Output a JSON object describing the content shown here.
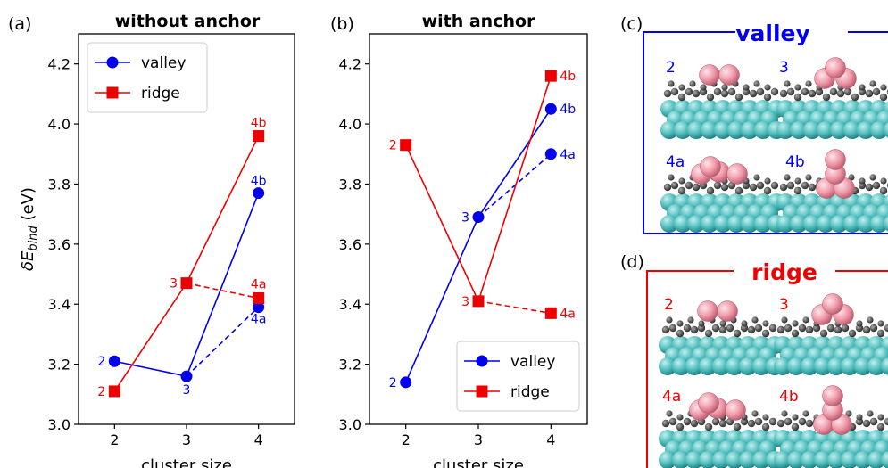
{
  "colors": {
    "valley": "#0000ee",
    "ridge": "#ee0000",
    "frame": "#000000"
  },
  "chart_data": [
    {
      "type": "line",
      "panel": "(a)",
      "title": "without anchor",
      "xlabel": "cluster size",
      "ylabel": "δE_bind (eV)",
      "xlim": [
        1.5,
        4.5
      ],
      "ylim": [
        3.0,
        4.3
      ],
      "xticks": [
        "2",
        "3",
        "4"
      ],
      "yticks": [
        "3.0",
        "3.2",
        "3.4",
        "3.6",
        "3.8",
        "4.0",
        "4.2"
      ],
      "legend_position": "top-left",
      "series": [
        {
          "name": "valley",
          "marker": "circle",
          "points": [
            {
              "x": 2,
              "y": 3.21,
              "label": "2",
              "dash": false
            },
            {
              "x": 3,
              "y": 3.16,
              "label": "3",
              "dash": false
            },
            {
              "x": 4,
              "y": 3.77,
              "label": "4b",
              "dash": false
            },
            {
              "x": 4,
              "y": 3.39,
              "label": "4a",
              "dash": true
            }
          ]
        },
        {
          "name": "ridge",
          "marker": "square",
          "points": [
            {
              "x": 2,
              "y": 3.11,
              "label": "2",
              "dash": false
            },
            {
              "x": 3,
              "y": 3.47,
              "label": "3",
              "dash": false
            },
            {
              "x": 4,
              "y": 3.96,
              "label": "4b",
              "dash": false
            },
            {
              "x": 4,
              "y": 3.42,
              "label": "4a",
              "dash": true
            }
          ]
        }
      ]
    },
    {
      "type": "line",
      "panel": "(b)",
      "title": "with anchor",
      "xlabel": "cluster size",
      "ylabel": "",
      "xlim": [
        1.5,
        4.5
      ],
      "ylim": [
        3.0,
        4.3
      ],
      "xticks": [
        "2",
        "3",
        "4"
      ],
      "yticks": [
        "3.0",
        "3.2",
        "3.4",
        "3.6",
        "3.8",
        "4.0",
        "4.2"
      ],
      "legend_position": "bottom-right",
      "series": [
        {
          "name": "valley",
          "marker": "circle",
          "points": [
            {
              "x": 2,
              "y": 3.14,
              "label": "2",
              "dash": false
            },
            {
              "x": 3,
              "y": 3.69,
              "label": "3",
              "dash": false
            },
            {
              "x": 4,
              "y": 4.05,
              "label": "4b",
              "dash": false
            },
            {
              "x": 4,
              "y": 3.9,
              "label": "4a",
              "dash": true
            }
          ]
        },
        {
          "name": "ridge",
          "marker": "square",
          "points": [
            {
              "x": 2,
              "y": 3.93,
              "label": "2",
              "dash": false
            },
            {
              "x": 3,
              "y": 3.41,
              "label": "3",
              "dash": false
            },
            {
              "x": 4,
              "y": 4.16,
              "label": "4b",
              "dash": false
            },
            {
              "x": 4,
              "y": 3.37,
              "label": "4a",
              "dash": true
            }
          ]
        }
      ]
    }
  ],
  "panel_c": {
    "letter": "(c)",
    "title": "valley",
    "labels": [
      "2",
      "3",
      "4a",
      "4b"
    ]
  },
  "panel_d": {
    "letter": "(d)",
    "title": "ridge",
    "labels": [
      "2",
      "3",
      "4a",
      "4b"
    ]
  }
}
